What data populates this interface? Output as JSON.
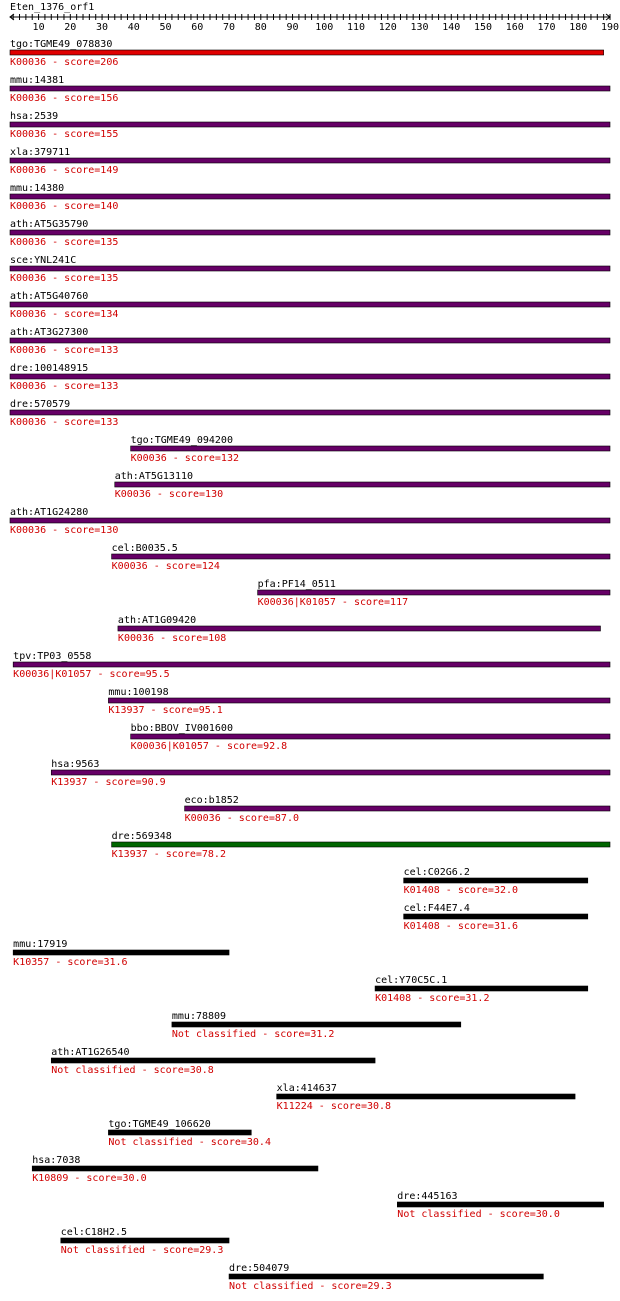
{
  "query": "Eten_1376_orf1",
  "axis": {
    "min": 1,
    "max": 190,
    "ticks": [
      10,
      20,
      30,
      40,
      50,
      60,
      70,
      80,
      90,
      100,
      110,
      120,
      130,
      140,
      150,
      160,
      170,
      180,
      190
    ]
  },
  "colors": {
    "red": "#e00000",
    "purple": "#660066",
    "green": "#006600",
    "black": "#000000",
    "label": "#000000",
    "annotation": "#d00000"
  },
  "hits": [
    {
      "gene": "tgo:TGME49_078830",
      "annotation": "K00036 - score=206",
      "start": 1,
      "end": 188,
      "color": "red"
    },
    {
      "gene": "mmu:14381",
      "annotation": "K00036 - score=156",
      "start": 1,
      "end": 190,
      "color": "purple"
    },
    {
      "gene": "hsa:2539",
      "annotation": "K00036 - score=155",
      "start": 1,
      "end": 190,
      "color": "purple"
    },
    {
      "gene": "xla:379711",
      "annotation": "K00036 - score=149",
      "start": 1,
      "end": 190,
      "color": "purple"
    },
    {
      "gene": "mmu:14380",
      "annotation": "K00036 - score=140",
      "start": 1,
      "end": 190,
      "color": "purple"
    },
    {
      "gene": "ath:AT5G35790",
      "annotation": "K00036 - score=135",
      "start": 1,
      "end": 190,
      "color": "purple"
    },
    {
      "gene": "sce:YNL241C",
      "annotation": "K00036 - score=135",
      "start": 1,
      "end": 190,
      "color": "purple"
    },
    {
      "gene": "ath:AT5G40760",
      "annotation": "K00036 - score=134",
      "start": 1,
      "end": 190,
      "color": "purple"
    },
    {
      "gene": "ath:AT3G27300",
      "annotation": "K00036 - score=133",
      "start": 1,
      "end": 190,
      "color": "purple"
    },
    {
      "gene": "dre:100148915",
      "annotation": "K00036 - score=133",
      "start": 1,
      "end": 190,
      "color": "purple"
    },
    {
      "gene": "dre:570579",
      "annotation": "K00036 - score=133",
      "start": 1,
      "end": 190,
      "color": "purple"
    },
    {
      "gene": "tgo:TGME49_094200",
      "annotation": "K00036 - score=132",
      "start": 39,
      "end": 190,
      "color": "purple"
    },
    {
      "gene": "ath:AT5G13110",
      "annotation": "K00036 - score=130",
      "start": 34,
      "end": 190,
      "color": "purple"
    },
    {
      "gene": "ath:AT1G24280",
      "annotation": "K00036 - score=130",
      "start": 1,
      "end": 190,
      "color": "purple"
    },
    {
      "gene": "cel:B0035.5",
      "annotation": "K00036 - score=124",
      "start": 33,
      "end": 190,
      "color": "purple"
    },
    {
      "gene": "pfa:PF14_0511",
      "annotation": "K00036|K01057 - score=117",
      "start": 79,
      "end": 190,
      "color": "purple"
    },
    {
      "gene": "ath:AT1G09420",
      "annotation": "K00036 - score=108",
      "start": 35,
      "end": 187,
      "color": "purple"
    },
    {
      "gene": "tpv:TP03_0558",
      "annotation": "K00036|K01057 - score=95.5",
      "start": 2,
      "end": 190,
      "color": "purple"
    },
    {
      "gene": "mmu:100198",
      "annotation": "K13937 - score=95.1",
      "start": 32,
      "end": 190,
      "color": "purple"
    },
    {
      "gene": "bbo:BBOV_IV001600",
      "annotation": "K00036|K01057 - score=92.8",
      "start": 39,
      "end": 190,
      "color": "purple"
    },
    {
      "gene": "hsa:9563",
      "annotation": "K13937 - score=90.9",
      "start": 14,
      "end": 190,
      "color": "purple"
    },
    {
      "gene": "eco:b1852",
      "annotation": "K00036 - score=87.0",
      "start": 56,
      "end": 190,
      "color": "purple"
    },
    {
      "gene": "dre:569348",
      "annotation": "K13937 - score=78.2",
      "start": 33,
      "end": 190,
      "color": "green"
    },
    {
      "gene": "cel:C02G6.2",
      "annotation": "K01408 - score=32.0",
      "start": 125,
      "end": 183,
      "color": "black"
    },
    {
      "gene": "cel:F44E7.4",
      "annotation": "K01408 - score=31.6",
      "start": 125,
      "end": 183,
      "color": "black"
    },
    {
      "gene": "mmu:17919",
      "annotation": "K10357 - score=31.6",
      "start": 2,
      "end": 70,
      "color": "black"
    },
    {
      "gene": "cel:Y70C5C.1",
      "annotation": "K01408 - score=31.2",
      "start": 116,
      "end": 183,
      "color": "black"
    },
    {
      "gene": "mmu:78809",
      "annotation": "Not classified - score=31.2",
      "start": 52,
      "end": 143,
      "color": "black"
    },
    {
      "gene": "ath:AT1G26540",
      "annotation": "Not classified - score=30.8",
      "start": 14,
      "end": 116,
      "color": "black"
    },
    {
      "gene": "xla:414637",
      "annotation": "K11224 - score=30.8",
      "start": 85,
      "end": 179,
      "color": "black"
    },
    {
      "gene": "tgo:TGME49_106620",
      "annotation": "Not classified - score=30.4",
      "start": 32,
      "end": 77,
      "color": "black"
    },
    {
      "gene": "hsa:7038",
      "annotation": "K10809 - score=30.0",
      "start": 8,
      "end": 98,
      "color": "black"
    },
    {
      "gene": "dre:445163",
      "annotation": "Not classified - score=30.0",
      "start": 123,
      "end": 188,
      "color": "black"
    },
    {
      "gene": "cel:C18H2.5",
      "annotation": "Not classified - score=29.3",
      "start": 17,
      "end": 70,
      "color": "black"
    },
    {
      "gene": "dre:504079",
      "annotation": "Not classified - score=29.3",
      "start": 70,
      "end": 169,
      "color": "black"
    }
  ]
}
